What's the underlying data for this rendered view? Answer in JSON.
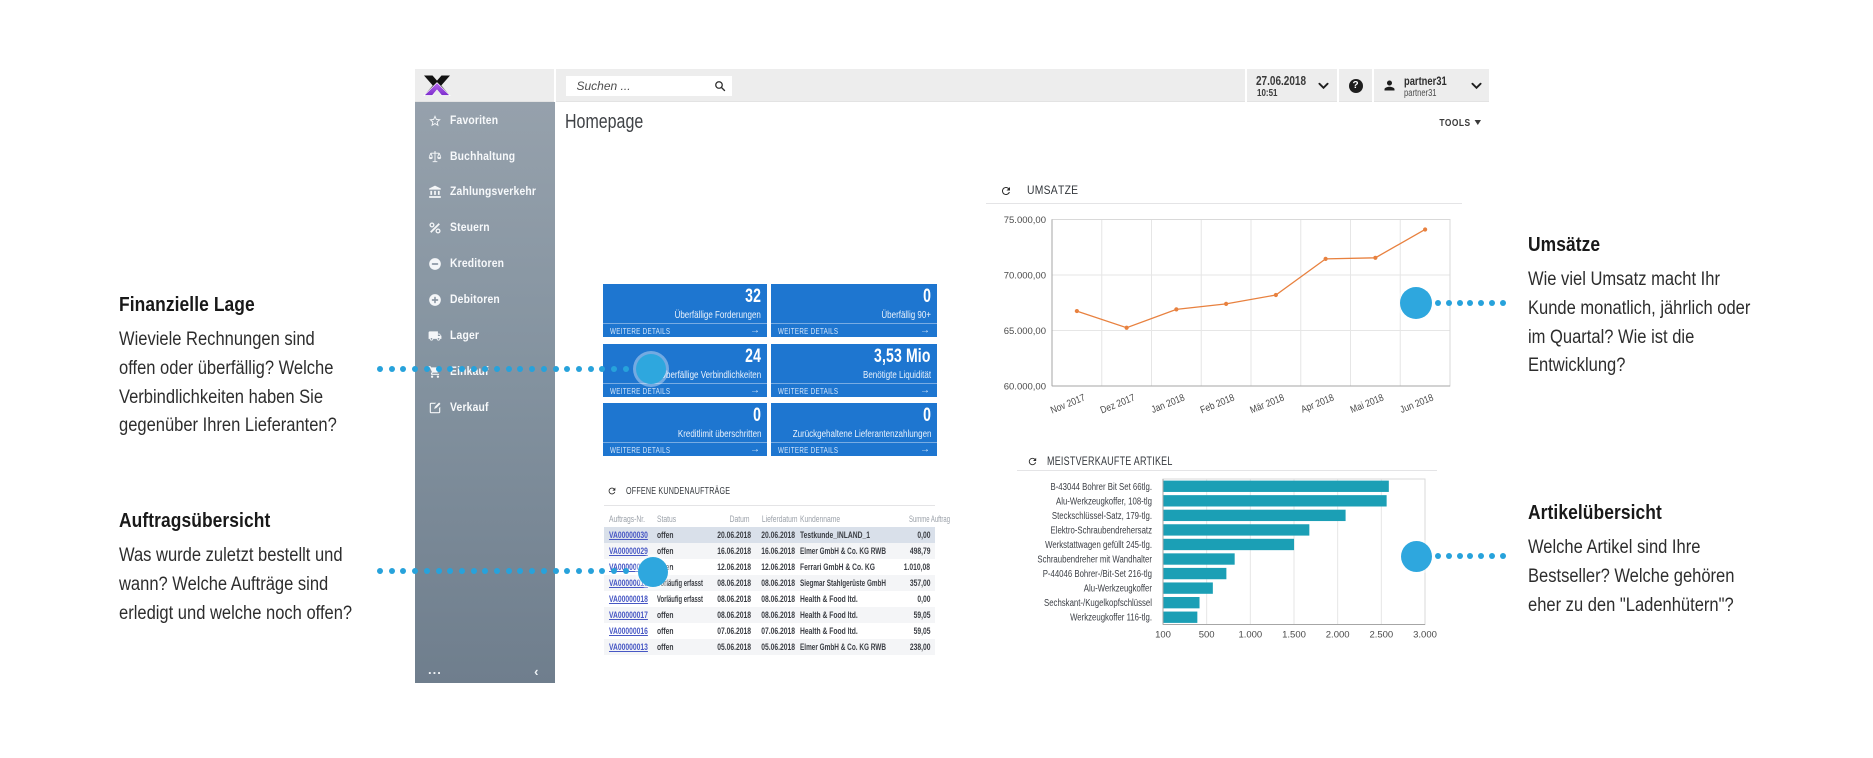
{
  "topbar": {
    "search_placeholder": "Suchen ...",
    "date": "27.06.2018",
    "time": "10:51",
    "help_label": "?",
    "user_name": "partner31",
    "user_sub": "partner31"
  },
  "sidebar": {
    "items": [
      {
        "icon": "star-icon",
        "label": "Favoriten"
      },
      {
        "icon": "scale-icon",
        "label": "Buchhaltung"
      },
      {
        "icon": "bank-icon",
        "label": "Zahlungsverkehr"
      },
      {
        "icon": "percent-icon",
        "label": "Steuern"
      },
      {
        "icon": "minus-circle-icon",
        "label": "Kreditoren"
      },
      {
        "icon": "plus-circle-icon",
        "label": "Debitoren"
      },
      {
        "icon": "truck-icon",
        "label": "Lager"
      },
      {
        "icon": "cart-icon",
        "label": "Einkauf"
      },
      {
        "icon": "edit-icon",
        "label": "Verkauf"
      }
    ],
    "more_label": "...",
    "collapse_label": "‹"
  },
  "main": {
    "title": "Homepage",
    "tools_label": "TOOLS"
  },
  "tiles": {
    "details_label": "WEITERE DETAILS",
    "arrow": "→",
    "items": [
      {
        "value": "32",
        "label": "Überfällige Forderungen"
      },
      {
        "value": "0",
        "label": "Überfällig 90+"
      },
      {
        "value": "24",
        "label": "Überfällige Verbindlichkeiten"
      },
      {
        "value": "3,53 Mio",
        "label": "Benötigte Liquidität"
      },
      {
        "value": "0",
        "label": "Kreditlimit überschritten"
      },
      {
        "value": "0",
        "label": "Zurückgehaltene Lieferantenzahlungen"
      }
    ]
  },
  "orders_table": {
    "title": "OFFENE KUNDENAUFTRÄGE",
    "columns": [
      "Auftrags-Nr.",
      "Status",
      "Datum",
      "Lieferdatum",
      "Kundenname",
      "Summe Auftrag"
    ],
    "rows": [
      [
        "VA00000030",
        "offen",
        "20.06.2018",
        "20.06.2018",
        "Testkunde_INLAND_1",
        "0,00"
      ],
      [
        "VA00000029",
        "offen",
        "16.06.2018",
        "16.06.2018",
        "Elmer GmbH & Co. KG RWB",
        "498,79"
      ],
      [
        "VA00000028",
        "offen",
        "12.06.2018",
        "12.06.2018",
        "Ferrari GmbH & Co. KG",
        "1.010,08"
      ],
      [
        "VA00000019",
        "Vorläufig erfasst",
        "08.06.2018",
        "08.06.2018",
        "Siegmar Stahlgerüste GmbH",
        "357,00"
      ],
      [
        "VA00000018",
        "Vorläufig erfasst",
        "08.06.2018",
        "08.06.2018",
        "Health & Food ltd.",
        "0,00"
      ],
      [
        "VA00000017",
        "offen",
        "08.06.2018",
        "08.06.2018",
        "Health & Food ltd.",
        "59,05"
      ],
      [
        "VA00000016",
        "offen",
        "07.06.2018",
        "07.06.2018",
        "Health & Food ltd.",
        "59,05"
      ],
      [
        "VA00000013",
        "offen",
        "05.06.2018",
        "05.06.2018",
        "Elmer GmbH & Co. KG RWB",
        "238,00"
      ]
    ]
  },
  "chart_data": [
    {
      "type": "line",
      "title": "UMSÄTZE",
      "x": [
        "Nov 2017",
        "Dez 2017",
        "Jan 2018",
        "Feb 2018",
        "Mär 2018",
        "Apr 2018",
        "Mai 2018",
        "Jun 2018"
      ],
      "series": [
        {
          "name": "Umsätze",
          "values": [
            66750,
            65250,
            66900,
            67400,
            68200,
            71450,
            71550,
            74100
          ]
        }
      ],
      "ylim": [
        60000,
        75000
      ],
      "yticks": [
        60000,
        65000,
        70000,
        75000
      ],
      "ytick_labels": [
        "60.000,00",
        "65.000,00",
        "70.000,00",
        "75.000,00"
      ],
      "xlabel": "",
      "ylabel": "",
      "grid": true,
      "legend": "none",
      "line_color": "#e8813f"
    },
    {
      "type": "bar",
      "title": "MEISTVERKAUFTE ARTIKEL",
      "orientation": "horizontal",
      "categories": [
        "B-43044 Bohrer Bit Set 66tlg.",
        "Alu-Werkzeugkoffer, 108-tlg",
        "Steckschlüssel-Satz, 179-tlg.",
        "Elektro-Schraubendrehersatz",
        "Werkstattwagen gefüllt 245-tlg.",
        "Schraubendreher mit Wandhalter",
        "P-44046 Bohrer-/Bit-Set 216-tlg",
        "Alu-Werkzeugkoffer",
        "Sechskant-/Kugelkopfschlüssel",
        "Werkzeugkoffer 116-tlg."
      ],
      "values": [
        2580,
        2555,
        2085,
        1670,
        1495,
        815,
        720,
        565,
        430,
        410
      ],
      "xticks": [
        100,
        500,
        1000,
        1500,
        2000,
        2500,
        3000
      ],
      "xtick_labels": [
        "100",
        "500",
        "1.000",
        "1.500",
        "2.000",
        "2.500",
        "3.000"
      ],
      "xlabel": "",
      "ylabel": "",
      "grid": true,
      "legend": "none",
      "bar_color": "#1b9fb5"
    }
  ],
  "annotations": {
    "left1": {
      "title": "Finanzielle Lage",
      "body": [
        "Wieviele Rechnungen sind",
        "offen oder überfällig? Welche",
        "Verbindlichkeiten haben Sie",
        "gegenüber Ihren Lieferanten?"
      ]
    },
    "left2": {
      "title": "Auftragsübersicht",
      "body": [
        "Was wurde zuletzt bestellt und",
        "wann? Welche Aufträge sind",
        "erledigt und welche noch offen?"
      ]
    },
    "right1": {
      "title": "Umsätze",
      "body": [
        "Wie viel Umsatz macht Ihr",
        "Kunde monatlich, jährlich oder",
        "im Quartal? Wie ist die",
        "Entwicklung?"
      ]
    },
    "right2": {
      "title": "Artikelübersicht",
      "body": [
        "Welche Artikel sind Ihre",
        "Bestseller? Welche gehören",
        "eher zu den \"Ladenhütern\"?"
      ]
    }
  },
  "colors": {
    "tile_blue": "#1e76d0",
    "annotation_blue": "#27a2db",
    "link_blue": "#4757c4",
    "line_orange": "#e8813f",
    "bar_teal": "#1b9fb5",
    "sidebar_top": "#96a1ac",
    "sidebar_bottom": "#6f7e8d"
  }
}
